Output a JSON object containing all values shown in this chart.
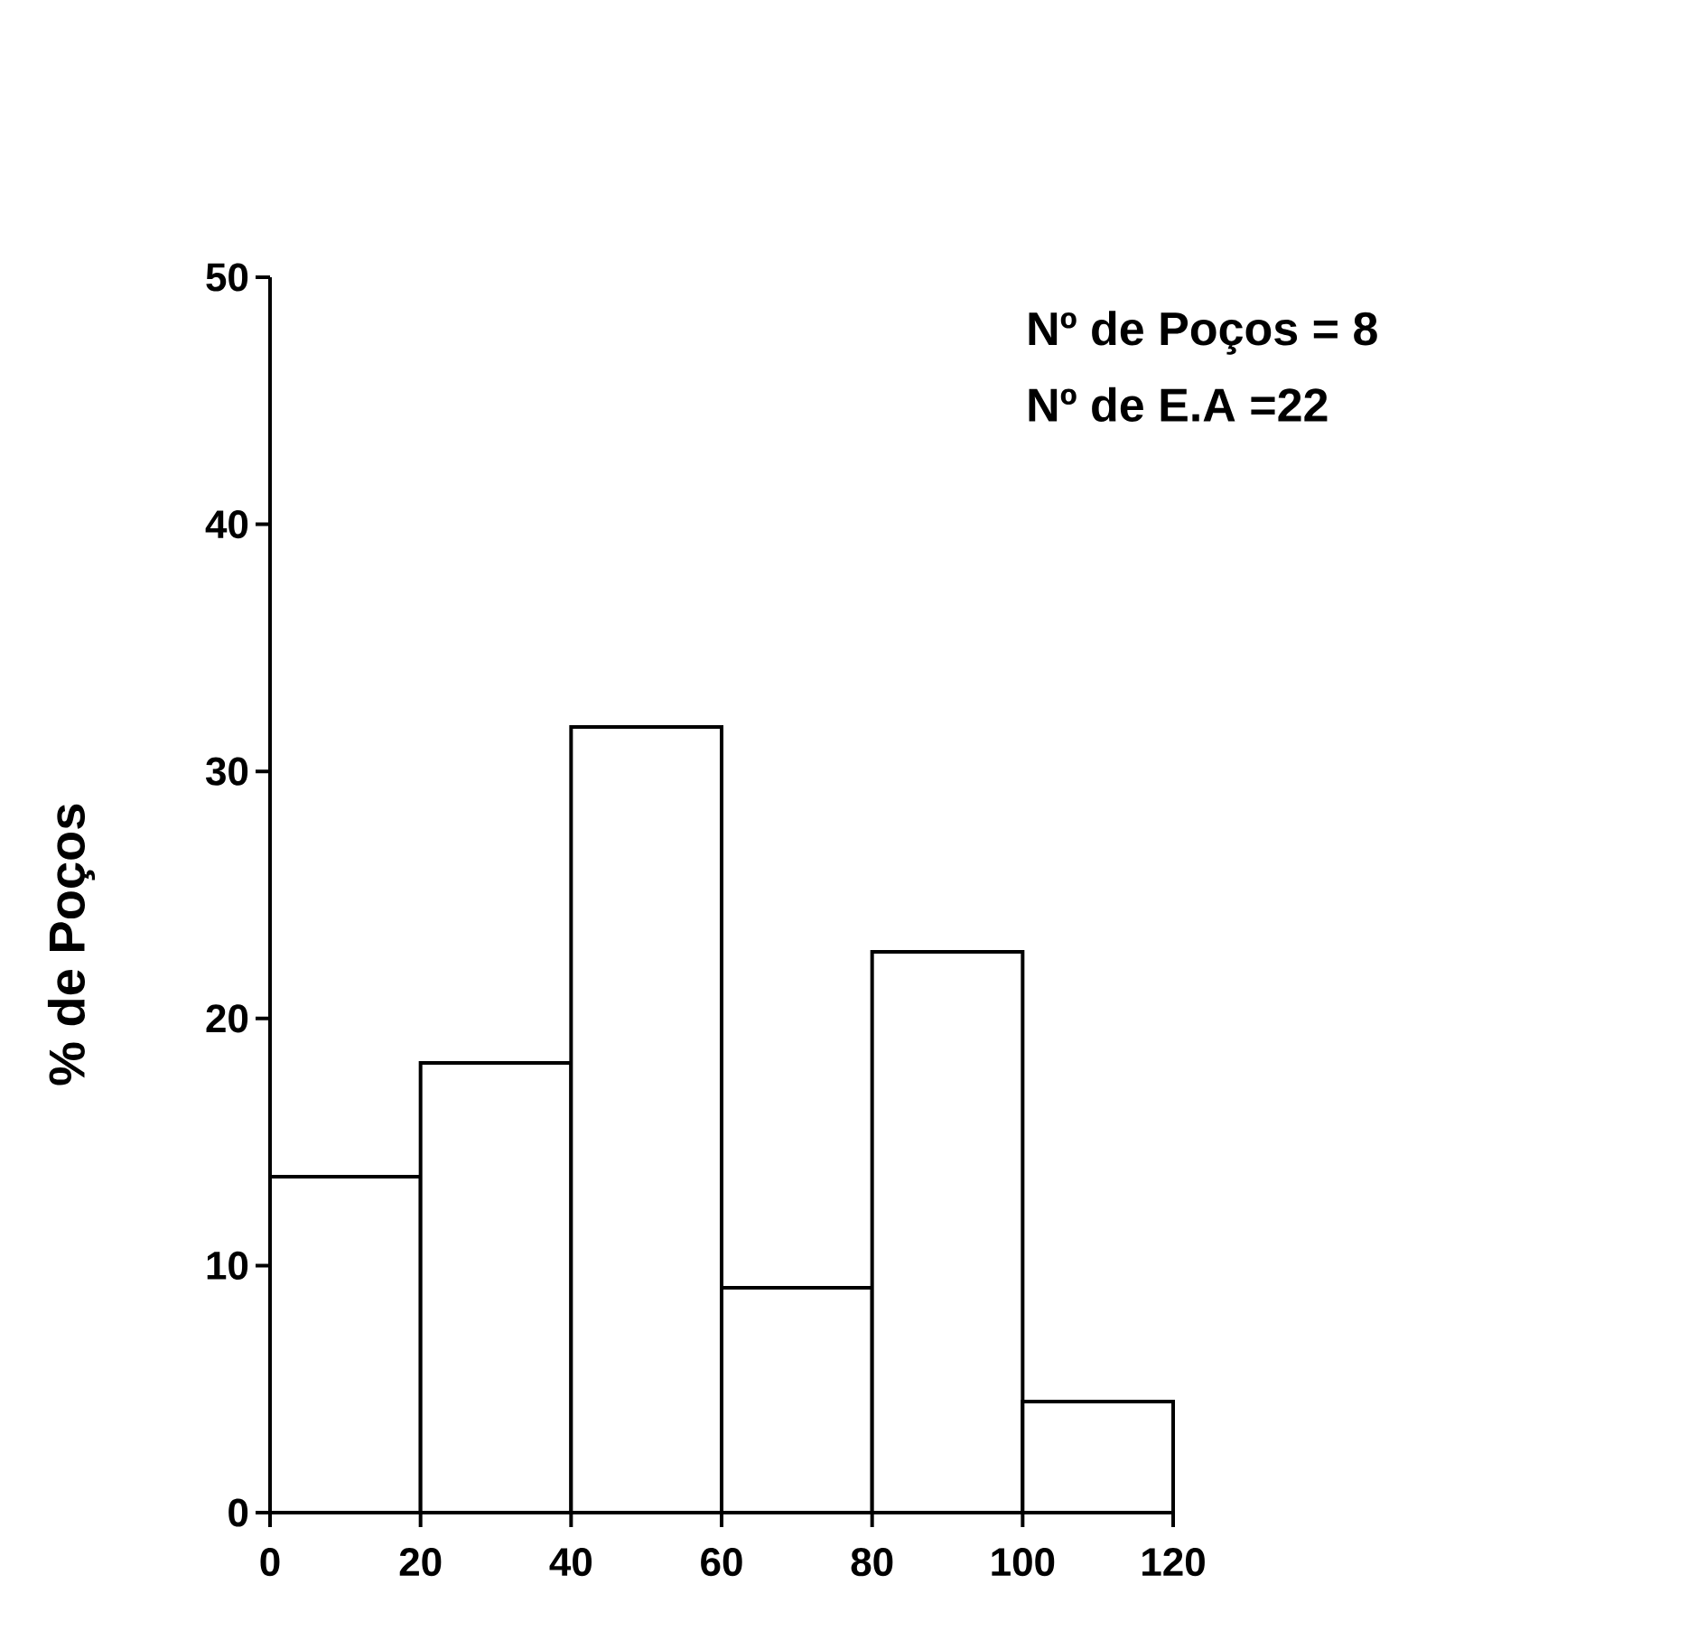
{
  "chart_data": {
    "type": "histogram",
    "ylabel": "% de Poços",
    "bins": [
      0,
      20,
      40,
      60,
      80,
      100,
      120
    ],
    "values": [
      13.6,
      18.2,
      31.8,
      9.1,
      22.7,
      4.5
    ],
    "color": "#ffffff",
    "xlim": [
      0,
      120
    ],
    "xticks": [
      0,
      20,
      40,
      60,
      80,
      100,
      120
    ],
    "ylim": [
      0,
      50
    ],
    "yticks": [
      0,
      10,
      20,
      30,
      40,
      50
    ],
    "annotations": [
      "Nº de Poços = 8",
      "Nº de E.A =22"
    ]
  }
}
